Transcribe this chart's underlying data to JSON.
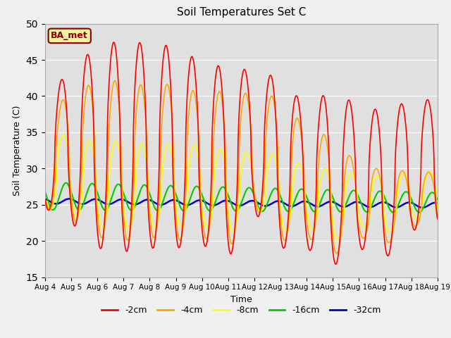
{
  "title": "Soil Temperatures Set C",
  "xlabel": "Time",
  "ylabel": "Soil Temperature (C)",
  "ylim": [
    15,
    50
  ],
  "xlim_days": [
    0,
    15
  ],
  "fig_facecolor": "#f0f0f0",
  "plot_bg_color": "#e0e0e0",
  "legend_label": "BA_met",
  "series_colors": {
    "-2cm": "#ff0000",
    "-4cm": "#ffa500",
    "-8cm": "#ffff00",
    "-16cm": "#00cc00",
    "-32cm": "#0000cc"
  },
  "series_linewidths": {
    "-2cm": 1.2,
    "-4cm": 1.2,
    "-8cm": 1.2,
    "-16cm": 1.5,
    "-32cm": 1.8
  },
  "tick_dates": [
    "Aug 4",
    "Aug 5",
    "Aug 6",
    "Aug 7",
    "Aug 8",
    "Aug 9",
    "Aug 10",
    "Aug 11",
    "Aug 12",
    "Aug 13",
    "Aug 14",
    "Aug 15",
    "Aug 16",
    "Aug 17",
    "Aug 18",
    "Aug 19"
  ],
  "tick_positions": [
    0,
    1,
    2,
    3,
    4,
    5,
    6,
    7,
    8,
    9,
    10,
    11,
    12,
    13,
    14,
    15
  ],
  "yticks": [
    15,
    20,
    25,
    30,
    35,
    40,
    45,
    50
  ],
  "day_peaks_2cm": [
    38.5,
    44.5,
    46.5,
    48.0,
    47.0,
    47.0,
    44.5,
    44.0,
    43.5,
    42.5,
    38.5,
    41.0,
    38.5,
    38.0,
    39.5
  ],
  "day_troughs_2cm": [
    24.5,
    22.5,
    19.0,
    18.5,
    19.0,
    19.0,
    19.5,
    17.5,
    24.0,
    19.0,
    19.0,
    16.5,
    19.0,
    17.5,
    21.5
  ],
  "day_peaks_4cm": [
    36.0,
    41.5,
    41.5,
    42.5,
    41.0,
    42.0,
    40.0,
    41.0,
    40.0,
    40.0,
    35.0,
    34.5,
    30.0,
    30.0,
    29.5
  ],
  "day_troughs_4cm": [
    24.5,
    23.0,
    20.5,
    20.0,
    20.5,
    20.0,
    20.5,
    19.0,
    24.5,
    20.0,
    20.5,
    18.0,
    20.5,
    19.5,
    22.0
  ],
  "day_peaks_8cm": [
    35.0,
    34.5,
    33.5,
    34.0,
    33.0,
    33.5,
    33.0,
    32.5,
    32.0,
    32.0,
    30.0,
    30.0,
    29.0,
    29.0,
    29.5
  ],
  "day_troughs_8cm": [
    24.5,
    23.5,
    22.0,
    21.5,
    22.0,
    22.0,
    22.0,
    21.0,
    24.5,
    21.5,
    22.0,
    20.0,
    22.0,
    21.0,
    23.0
  ]
}
